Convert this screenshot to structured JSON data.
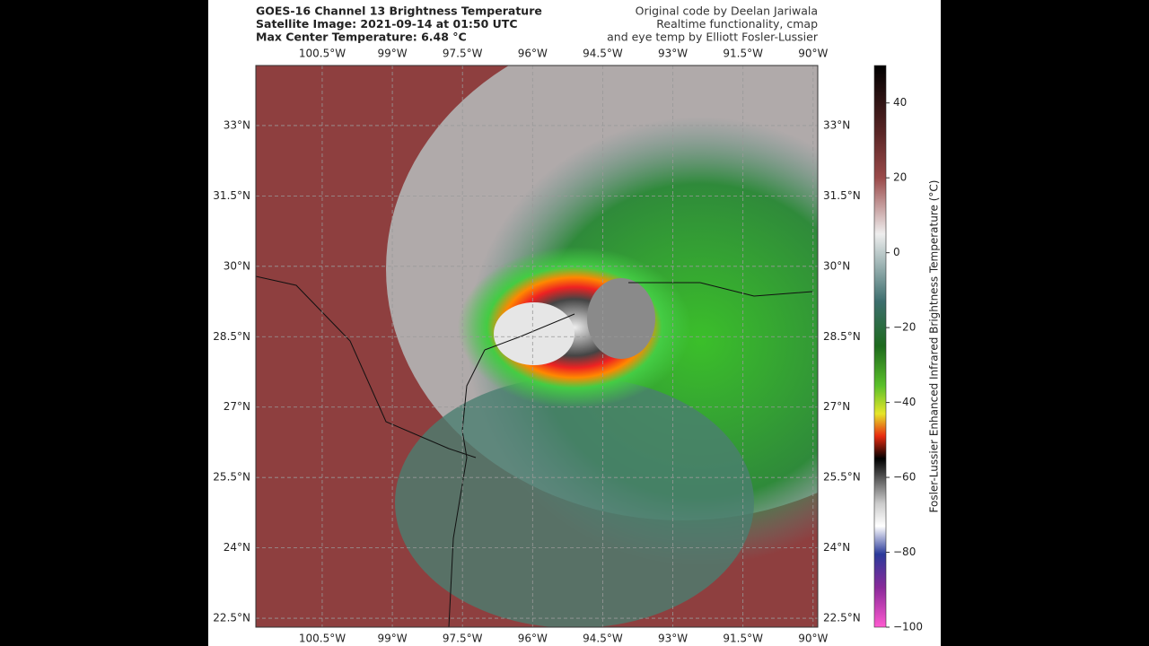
{
  "header": {
    "title_lines": [
      "GOES-16 Channel 13 Brightness Temperature",
      "Satellite Image: 2021-09-14 at 01:50 UTC",
      "Max Center Temperature: 6.48 °C"
    ],
    "credit_lines": [
      "Original code by Deelan Jariwala",
      "Realtime functionality, cmap",
      "and eye temp by Elliott Fosler-Lussier"
    ]
  },
  "map": {
    "lonlim": [
      -101.92,
      -89.9
    ],
    "latlim": [
      22.31,
      34.28
    ],
    "lon_ticks": [
      {
        "value": -100.5,
        "label": "100.5°W"
      },
      {
        "value": -99,
        "label": "99°W"
      },
      {
        "value": -97.5,
        "label": "97.5°W"
      },
      {
        "value": -96,
        "label": "96°W"
      },
      {
        "value": -94.5,
        "label": "94.5°W"
      },
      {
        "value": -93,
        "label": "93°W"
      },
      {
        "value": -91.5,
        "label": "91.5°W"
      },
      {
        "value": -90,
        "label": "90°W"
      }
    ],
    "lat_ticks": [
      {
        "value": 33,
        "label": "33°N"
      },
      {
        "value": 31.5,
        "label": "31.5°N"
      },
      {
        "value": 30,
        "label": "30°N"
      },
      {
        "value": 28.5,
        "label": "28.5°N"
      },
      {
        "value": 27,
        "label": "27°N"
      },
      {
        "value": 25.5,
        "label": "25.5°N"
      },
      {
        "value": 24,
        "label": "24°N"
      },
      {
        "value": 22.5,
        "label": "22.5°N"
      }
    ]
  },
  "colorbar": {
    "label": "Fosler-Lussier Enhanced Infrared Brightness Temperature (°C)",
    "lim": [
      -100,
      50
    ],
    "ticks": [
      40,
      20,
      0,
      {
        "value": -20,
        "label": "−20"
      },
      {
        "value": -40,
        "label": "−40"
      },
      {
        "value": -60,
        "label": "−60"
      },
      {
        "value": -80,
        "label": "−80"
      },
      {
        "value": -100,
        "label": "−100"
      }
    ]
  }
}
